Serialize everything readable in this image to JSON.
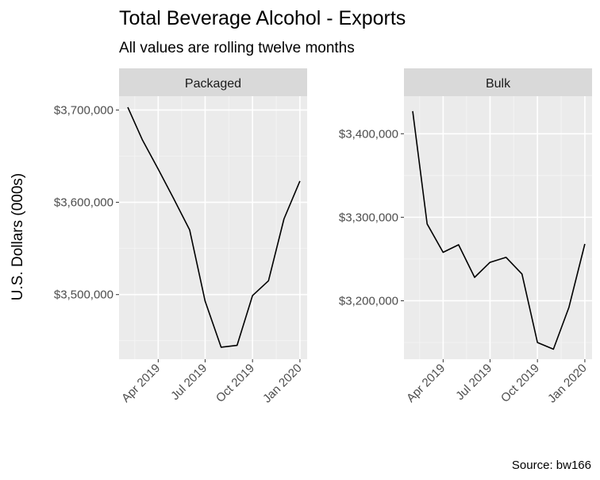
{
  "chart_data": {
    "type": "line",
    "title": "Total Beverage Alcohol - Exports",
    "subtitle": "All values are rolling twelve months",
    "ylabel": "U.S. Dollars (000s)",
    "xlabel": "",
    "caption": "Source: bw166",
    "grid": true,
    "legend": "none",
    "x_ticks": [
      "Apr 2019",
      "Jul 2019",
      "Oct 2019",
      "Jan 2020"
    ],
    "x_tick_dates": [
      "2019-04-01",
      "2019-07-01",
      "2019-10-01",
      "2020-01-01"
    ],
    "x": [
      "2019-02-01",
      "2019-03-01",
      "2019-04-01",
      "2019-05-01",
      "2019-06-01",
      "2019-07-01",
      "2019-08-01",
      "2019-09-01",
      "2019-10-01",
      "2019-11-01",
      "2019-12-01",
      "2020-01-01"
    ],
    "panels": [
      {
        "strip": "Packaged",
        "values": [
          3703000,
          3668000,
          3636000,
          3604000,
          3570000,
          3493000,
          3443000,
          3445000,
          3499000,
          3515000,
          3582000,
          3623000
        ],
        "ylim": [
          3430000,
          3715000
        ],
        "yticks": [
          3500000,
          3600000,
          3700000
        ],
        "ytick_labels": [
          "$3,500,000",
          "$3,600,000",
          "$3,700,000"
        ]
      },
      {
        "strip": "Bulk",
        "values": [
          3427000,
          3292000,
          3258000,
          3267000,
          3228000,
          3246000,
          3252000,
          3232000,
          3150000,
          3142000,
          3192000,
          3268000
        ],
        "ylim": [
          3130000,
          3445000
        ],
        "yticks": [
          3200000,
          3300000,
          3400000
        ],
        "ytick_labels": [
          "$3,200,000",
          "$3,300,000",
          "$3,400,000"
        ]
      }
    ]
  }
}
